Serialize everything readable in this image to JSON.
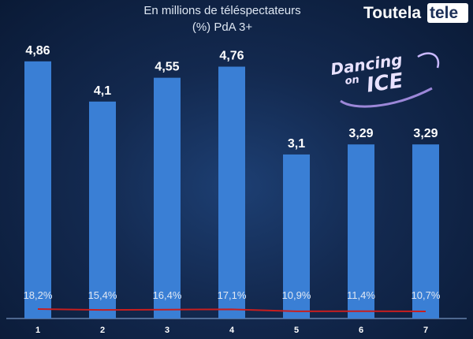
{
  "header": {
    "subtitle_line1": "En millions de téléspectateurs",
    "subtitle_line2": "(%) PdA 3+"
  },
  "brand": {
    "part1": "Toutela",
    "part2": "tele"
  },
  "logo": {
    "line1": "Dancing",
    "line2": "on",
    "line3": "ICE"
  },
  "colors": {
    "bar": "#3a7fd5",
    "share_line": "#c81e1e",
    "background": "#132a52",
    "axis": "#8fb0e0"
  },
  "chart_data": {
    "type": "bar",
    "categories": [
      "1",
      "2",
      "3",
      "4",
      "5",
      "6",
      "7"
    ],
    "values": [
      4.86,
      4.1,
      4.55,
      4.76,
      3.1,
      3.29,
      3.29
    ],
    "value_labels": [
      "4,86",
      "4,1",
      "4,55",
      "4,76",
      "3,1",
      "3,29",
      "3,29"
    ],
    "ylim": [
      0,
      5.2
    ],
    "share_series": {
      "type": "line",
      "values": [
        18.2,
        15.4,
        16.4,
        17.1,
        10.9,
        11.4,
        10.7
      ],
      "labels": [
        "18,2%",
        "15,4%",
        "16,4%",
        "17,1%",
        "10,9%",
        "11,4%",
        "10,7%"
      ]
    },
    "title": "",
    "xlabel": "",
    "ylabel": "",
    "grid": false,
    "legend": "none"
  }
}
